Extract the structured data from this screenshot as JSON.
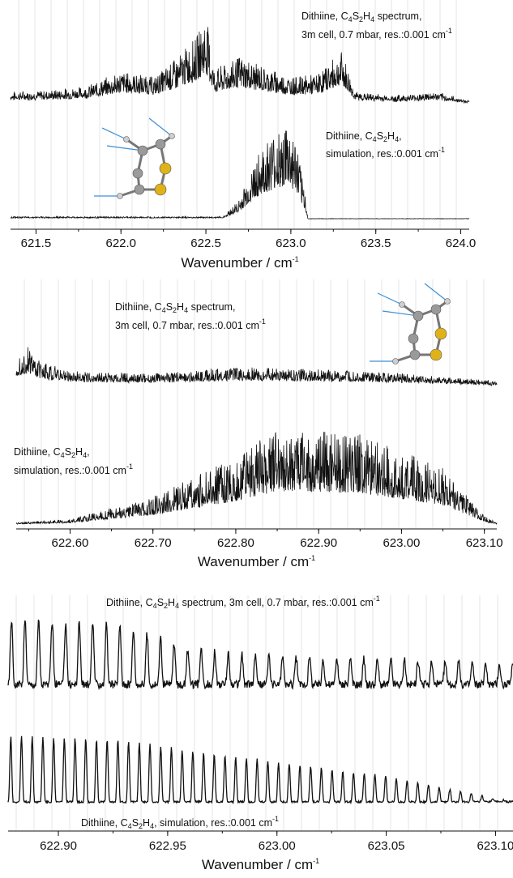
{
  "chart_data": [
    {
      "type": "line",
      "xlabel": {
        "main": "Wavenumber / cm",
        "sup": "-1"
      },
      "xlim": [
        621.35,
        624.05
      ],
      "xticks": [
        621.5,
        622.0,
        622.5,
        623.0,
        623.5,
        624.0
      ],
      "tick_labels": [
        "621.5",
        "622.0",
        "622.5",
        "623.0",
        "623.5",
        "624.0"
      ],
      "series": [
        {
          "annotation": [
            "Dithiine, C",
            "4",
            "S",
            "2",
            "H",
            "4",
            " spectrum,"
          ],
          "annotation2": [
            "3m cell, 0.7 mbar, res.:0.001 cm",
            "-1"
          ],
          "envelope": [
            [
              621.35,
              0.12
            ],
            [
              621.6,
              0.14
            ],
            [
              621.8,
              0.18
            ],
            [
              622.0,
              0.34
            ],
            [
              622.2,
              0.28
            ],
            [
              622.35,
              0.52
            ],
            [
              622.45,
              0.72
            ],
            [
              622.5,
              0.95
            ],
            [
              622.55,
              0.35
            ],
            [
              622.7,
              0.5
            ],
            [
              622.85,
              0.38
            ],
            [
              623.0,
              0.28
            ],
            [
              623.15,
              0.3
            ],
            [
              623.3,
              0.55
            ],
            [
              623.38,
              0.12
            ],
            [
              623.6,
              0.08
            ],
            [
              623.85,
              0.12
            ],
            [
              624.05,
              0.03
            ]
          ]
        },
        {
          "annotation": [
            "Dithiine, C",
            "4",
            "S",
            "2",
            "H",
            "4",
            ","
          ],
          "annotation2": [
            "simulation, res.:0.001 cm",
            "-1"
          ],
          "envelope": [
            [
              621.35,
              0.02
            ],
            [
              622.6,
              0.02
            ],
            [
              622.7,
              0.2
            ],
            [
              622.8,
              0.62
            ],
            [
              622.9,
              0.82
            ],
            [
              622.97,
              0.95
            ],
            [
              623.03,
              0.75
            ],
            [
              623.08,
              0.3
            ],
            [
              623.1,
              0.0
            ],
            [
              624.05,
              0.0
            ]
          ]
        }
      ]
    },
    {
      "type": "line",
      "xlabel": {
        "main": "Wavenumber / cm",
        "sup": "-1"
      },
      "xlim": [
        622.535,
        623.115
      ],
      "xticks": [
        622.6,
        622.7,
        622.8,
        622.9,
        623.0,
        623.1
      ],
      "tick_labels": [
        "622.60",
        "622.70",
        "622.80",
        "622.90",
        "623.00",
        "623.10"
      ],
      "series": [
        {
          "annotation": [
            "Dithiine, C",
            "4",
            "S",
            "2",
            "H",
            "4",
            " spectrum,"
          ],
          "annotation2": [
            "3m cell, 0.7 mbar, res.:0.001 cm",
            "-1"
          ],
          "envelope": [
            [
              622.535,
              0.35
            ],
            [
              622.55,
              0.45
            ],
            [
              622.56,
              0.3
            ],
            [
              622.6,
              0.18
            ],
            [
              622.7,
              0.15
            ],
            [
              622.8,
              0.22
            ],
            [
              622.9,
              0.2
            ],
            [
              623.0,
              0.15
            ],
            [
              623.1,
              0.08
            ],
            [
              623.115,
              0.06
            ]
          ]
        },
        {
          "annotation": [
            "Dithiine, C",
            "4",
            "S",
            "2",
            "H",
            "4",
            ","
          ],
          "annotation2": [
            "simulation, res.:0.001 cm",
            "-1"
          ],
          "envelope": [
            [
              622.535,
              0.02
            ],
            [
              622.6,
              0.05
            ],
            [
              622.7,
              0.25
            ],
            [
              622.8,
              0.6
            ],
            [
              622.85,
              0.85
            ],
            [
              622.95,
              0.8
            ],
            [
              623.05,
              0.5
            ],
            [
              623.1,
              0.08
            ],
            [
              623.115,
              0.02
            ]
          ]
        }
      ]
    },
    {
      "type": "line",
      "xlabel": {
        "main": "Wavenumber / cm",
        "sup": "-1"
      },
      "xlim": [
        622.877,
        623.108
      ],
      "xticks": [
        622.9,
        622.95,
        623.0,
        623.05,
        623.1
      ],
      "tick_labels": [
        "622.90",
        "622.95",
        "623.00",
        "623.05",
        "623.10"
      ],
      "series": [
        {
          "annotation": [
            "Dithiine, C",
            "4",
            "S",
            "2",
            "H",
            "4",
            " spectrum, 3m cell, 0.7 mbar, res.:0.001 cm",
            "-1"
          ],
          "envelope": [
            [
              622.877,
              0.95
            ],
            [
              622.93,
              0.85
            ],
            [
              622.96,
              0.5
            ],
            [
              623.0,
              0.4
            ],
            [
              623.05,
              0.35
            ],
            [
              623.108,
              0.3
            ]
          ]
        },
        {
          "annotation": [
            "Dithiine, C",
            "4",
            "S",
            "2",
            "H",
            "4",
            ", simulation, res.:0.001 cm",
            "-1"
          ],
          "envelope": [
            [
              622.877,
              0.9
            ],
            [
              622.93,
              0.85
            ],
            [
              622.96,
              0.7
            ],
            [
              623.0,
              0.55
            ],
            [
              623.05,
              0.35
            ],
            [
              623.09,
              0.1
            ],
            [
              623.108,
              0.0
            ]
          ]
        }
      ]
    }
  ]
}
